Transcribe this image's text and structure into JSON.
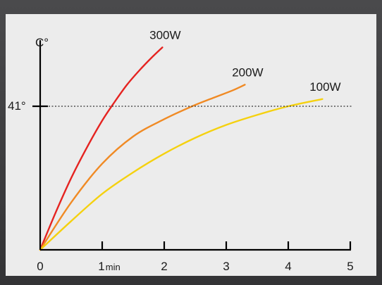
{
  "chart_data": {
    "type": "line",
    "ylabel": "C°",
    "xlim": [
      0,
      5
    ],
    "x_ticks": [
      {
        "value": 0,
        "label": "0",
        "sub": ""
      },
      {
        "value": 1,
        "label": "1",
        "sub": "min"
      },
      {
        "value": 2,
        "label": "2",
        "sub": ""
      },
      {
        "value": 3,
        "label": "3",
        "sub": ""
      },
      {
        "value": 4,
        "label": "4",
        "sub": ""
      },
      {
        "value": 5,
        "label": "5",
        "sub": ""
      }
    ],
    "threshold": {
      "value": 41,
      "label": "41°",
      "style": "dotted"
    },
    "ylim_relative_top": 1.46,
    "series": [
      {
        "name": "300W",
        "color": "#e52320",
        "x": [
          0,
          0.25,
          0.5,
          0.75,
          1.0,
          1.2,
          1.4,
          1.6,
          1.8,
          1.97
        ],
        "y_rel": [
          0,
          0.26,
          0.5,
          0.71,
          0.9,
          1.03,
          1.15,
          1.25,
          1.34,
          1.41
        ]
      },
      {
        "name": "200W",
        "color": "#f08a24",
        "x": [
          0,
          0.5,
          1.0,
          1.5,
          2.0,
          2.45,
          2.8,
          3.1,
          3.3
        ],
        "y_rel": [
          0,
          0.33,
          0.6,
          0.79,
          0.91,
          1.0,
          1.06,
          1.11,
          1.15
        ]
      },
      {
        "name": "100W",
        "color": "#f5d10f",
        "x": [
          0,
          0.5,
          1.0,
          1.5,
          2.0,
          2.5,
          3.0,
          3.5,
          4.0,
          4.55
        ],
        "y_rel": [
          0,
          0.2,
          0.39,
          0.54,
          0.67,
          0.78,
          0.87,
          0.94,
          1.0,
          1.05
        ]
      }
    ]
  }
}
